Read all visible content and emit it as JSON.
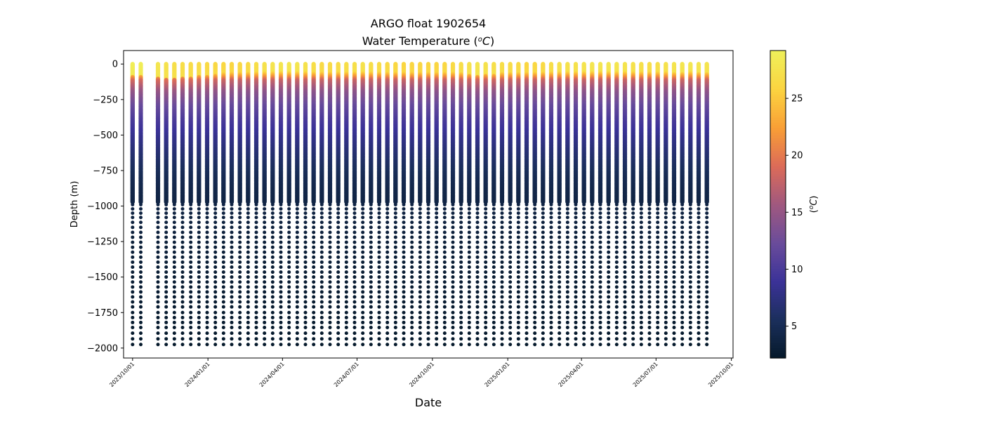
{
  "chart_data": {
    "type": "scatter",
    "title": "ARGO float 1902654",
    "subtitle_prefix": "Water Temperature (",
    "subtitle_unit_base": "o",
    "subtitle_unit_main": "C",
    "subtitle_suffix": ")",
    "xlabel": "Date",
    "ylabel": "Depth (m)",
    "colorbar_label_prefix": "(",
    "colorbar_label_sup": "o",
    "colorbar_label_main": "C",
    "colorbar_label_suffix": ")",
    "ylim": [
      -2070,
      95
    ],
    "xlim": [
      "2023-09-20",
      "2025-10-03"
    ],
    "yticks": [
      {
        "value": 0,
        "label": "0"
      },
      {
        "value": -250,
        "label": "−250"
      },
      {
        "value": -500,
        "label": "−500"
      },
      {
        "value": -750,
        "label": "−750"
      },
      {
        "value": -1000,
        "label": "−1000"
      },
      {
        "value": -1250,
        "label": "−1250"
      },
      {
        "value": -1500,
        "label": "−1500"
      },
      {
        "value": -1750,
        "label": "−1750"
      },
      {
        "value": -2000,
        "label": "−2000"
      }
    ],
    "xticks": [
      {
        "value": "2023-10-01",
        "label": "2023/10/01"
      },
      {
        "value": "2024-01-01",
        "label": "2024/01/01"
      },
      {
        "value": "2024-04-01",
        "label": "2024/04/01"
      },
      {
        "value": "2024-07-01",
        "label": "2024/07/01"
      },
      {
        "value": "2024-10-01",
        "label": "2024/10/01"
      },
      {
        "value": "2025-01-01",
        "label": "2025/01/01"
      },
      {
        "value": "2025-04-01",
        "label": "2025/04/01"
      },
      {
        "value": "2025-07-01",
        "label": "2025/07/01"
      },
      {
        "value": "2025-10-01",
        "label": "2025/10/01"
      }
    ],
    "colorbar": {
      "range": [
        2.2,
        29.2
      ],
      "colormap": [
        "#05192a",
        "#1b2f5c",
        "#3b3298",
        "#6a4c9b",
        "#a0587f",
        "#dc6b58",
        "#f99f36",
        "#fbd440",
        "#eff05a"
      ],
      "ticks": [
        {
          "value": 5,
          "label": "5"
        },
        {
          "value": 10,
          "label": "10"
        },
        {
          "value": 15,
          "label": "15"
        },
        {
          "value": 20,
          "label": "20"
        },
        {
          "value": 25,
          "label": "25"
        }
      ]
    },
    "profile_dates": [
      "2023-10-01",
      "2023-10-11",
      "2023-11-01",
      "2023-11-11",
      "2023-11-21",
      "2023-12-01",
      "2023-12-11",
      "2023-12-21",
      "2023-12-31",
      "2024-01-10",
      "2024-01-20",
      "2024-01-30",
      "2024-02-09",
      "2024-02-19",
      "2024-02-29",
      "2024-03-10",
      "2024-03-20",
      "2024-03-30",
      "2024-04-09",
      "2024-04-19",
      "2024-04-29",
      "2024-05-09",
      "2024-05-19",
      "2024-05-29",
      "2024-06-08",
      "2024-06-18",
      "2024-06-28",
      "2024-07-08",
      "2024-07-18",
      "2024-07-28",
      "2024-08-07",
      "2024-08-17",
      "2024-08-27",
      "2024-09-06",
      "2024-09-16",
      "2024-09-26",
      "2024-10-06",
      "2024-10-16",
      "2024-10-26",
      "2024-11-05",
      "2024-11-15",
      "2024-11-25",
      "2024-12-05",
      "2024-12-15",
      "2024-12-25",
      "2025-01-04",
      "2025-01-14",
      "2025-01-24",
      "2025-02-03",
      "2025-02-13",
      "2025-02-23",
      "2025-03-05",
      "2025-03-15",
      "2025-03-25",
      "2025-04-04",
      "2025-04-14",
      "2025-04-24",
      "2025-05-04",
      "2025-05-14",
      "2025-05-24",
      "2025-06-03",
      "2025-06-13",
      "2025-06-23",
      "2025-07-03",
      "2025-07-13",
      "2025-07-23",
      "2025-08-02",
      "2025-08-12",
      "2025-08-22",
      "2025-09-01"
    ],
    "surface_temperature": [
      29.0,
      29.0,
      28.0,
      27.5,
      27.2,
      27.0,
      26.8,
      26.8,
      26.5,
      26.3,
      26.2,
      26.0,
      26.2,
      26.5,
      27.0,
      27.5,
      27.8,
      28.0,
      28.2,
      28.0,
      27.5,
      27.0,
      26.5,
      26.5,
      26.8,
      27.0,
      27.2,
      27.5,
      27.0,
      26.8,
      26.5,
      26.2,
      26.0,
      26.0,
      26.0,
      26.0,
      26.0,
      26.2,
      26.5,
      27.0,
      27.5,
      28.0,
      27.5,
      27.2,
      27.0,
      26.8,
      26.5,
      26.0,
      26.2,
      26.5,
      27.0,
      27.5,
      27.5,
      27.5,
      27.8,
      28.0,
      28.0,
      28.2,
      28.0,
      27.8,
      27.5,
      27.3,
      27.0,
      27.2,
      27.5,
      27.8,
      28.0,
      28.2,
      28.0,
      27.8
    ],
    "mixed_layer_depth_m": [
      90,
      90,
      100,
      110,
      110,
      100,
      100,
      90,
      90,
      80,
      70,
      60,
      60,
      60,
      60,
      60,
      60,
      60,
      60,
      60,
      60,
      60,
      60,
      60,
      60,
      60,
      60,
      60,
      60,
      60,
      60,
      60,
      60,
      60,
      60,
      60,
      60,
      60,
      60,
      70,
      80,
      90,
      80,
      80,
      70,
      70,
      70,
      60,
      60,
      60,
      60,
      60,
      60,
      60,
      60,
      60,
      60,
      60,
      60,
      60,
      60,
      60,
      60,
      60,
      60,
      70,
      70,
      60,
      70,
      70
    ],
    "temperature_profile": [
      {
        "depth": 0,
        "temp": 28.0
      },
      {
        "depth": 60,
        "temp": 27.0
      },
      {
        "depth": 120,
        "temp": 18.0
      },
      {
        "depth": 200,
        "temp": 14.5
      },
      {
        "depth": 300,
        "temp": 12.0
      },
      {
        "depth": 400,
        "temp": 10.0
      },
      {
        "depth": 500,
        "temp": 8.5
      },
      {
        "depth": 600,
        "temp": 7.2
      },
      {
        "depth": 700,
        "temp": 6.0
      },
      {
        "depth": 800,
        "temp": 5.0
      },
      {
        "depth": 900,
        "temp": 4.3
      },
      {
        "depth": 1000,
        "temp": 3.9
      },
      {
        "depth": 1250,
        "temp": 3.3
      },
      {
        "depth": 1500,
        "temp": 2.9
      },
      {
        "depth": 1750,
        "temp": 2.6
      },
      {
        "depth": 2000,
        "temp": 2.3
      }
    ],
    "continuous_sampling_depth_m": [
      0,
      975
    ],
    "deep_sample_depths_m": [
      -990,
      -1020,
      -1050,
      -1080,
      -1115,
      -1150,
      -1185,
      -1220,
      -1255,
      -1290,
      -1325,
      -1360,
      -1395,
      -1430,
      -1465,
      -1500,
      -1535,
      -1570,
      -1605,
      -1640,
      -1675,
      -1710,
      -1750,
      -1785,
      -1820,
      -1855,
      -1895,
      -1935,
      -1975
    ]
  }
}
